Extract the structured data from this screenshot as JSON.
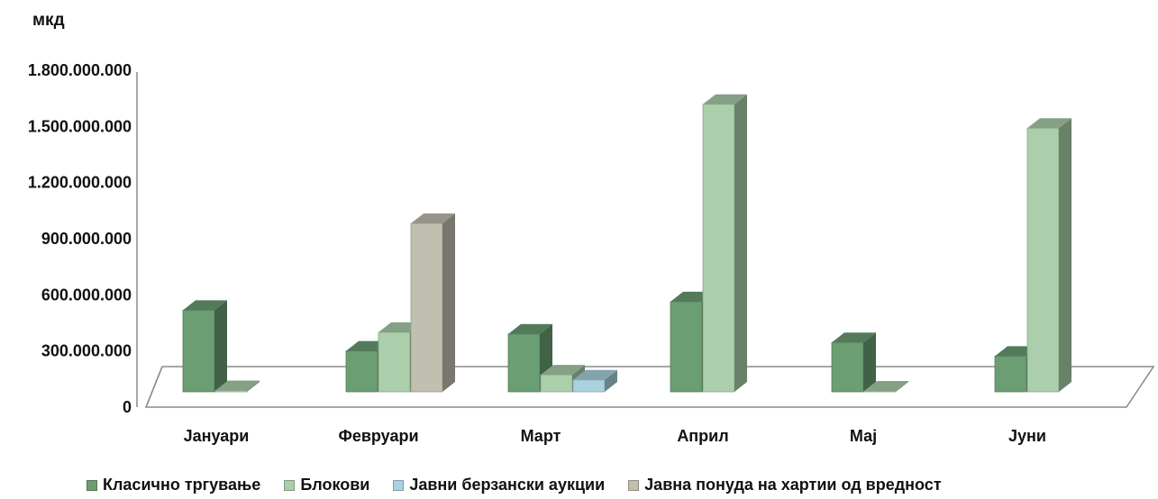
{
  "chart_data": {
    "type": "bar",
    "unit_label": "мкд",
    "categories": [
      "Јануари",
      "Февруари",
      "Март",
      "Април",
      "Мај",
      "Јуни"
    ],
    "series": [
      {
        "name": "Класично тргување",
        "color": "#6b9e73",
        "values": [
          480000000,
          240000000,
          340000000,
          530000000,
          290000000,
          210000000
        ]
      },
      {
        "name": "Блокови",
        "color": "#aacfaa",
        "values": [
          8000000,
          350000000,
          100000000,
          1690000000,
          5000000,
          1550000000
        ]
      },
      {
        "name": "Јавни берзански аукции",
        "color": "#a9d2de",
        "values": [
          0,
          0,
          70000000,
          0,
          0,
          0
        ]
      },
      {
        "name": "Јавна понуда на хартии од вредност",
        "color": "#c1bfb0",
        "values": [
          0,
          990000000,
          0,
          0,
          0,
          0
        ]
      }
    ],
    "yticks": [
      "0",
      "300.000.000",
      "600.000.000",
      "900.000.000",
      "1.200.000.000",
      "1.500.000.000",
      "1.800.000.000"
    ],
    "ylim": [
      0,
      1800000000
    ],
    "legend_position": "bottom"
  }
}
